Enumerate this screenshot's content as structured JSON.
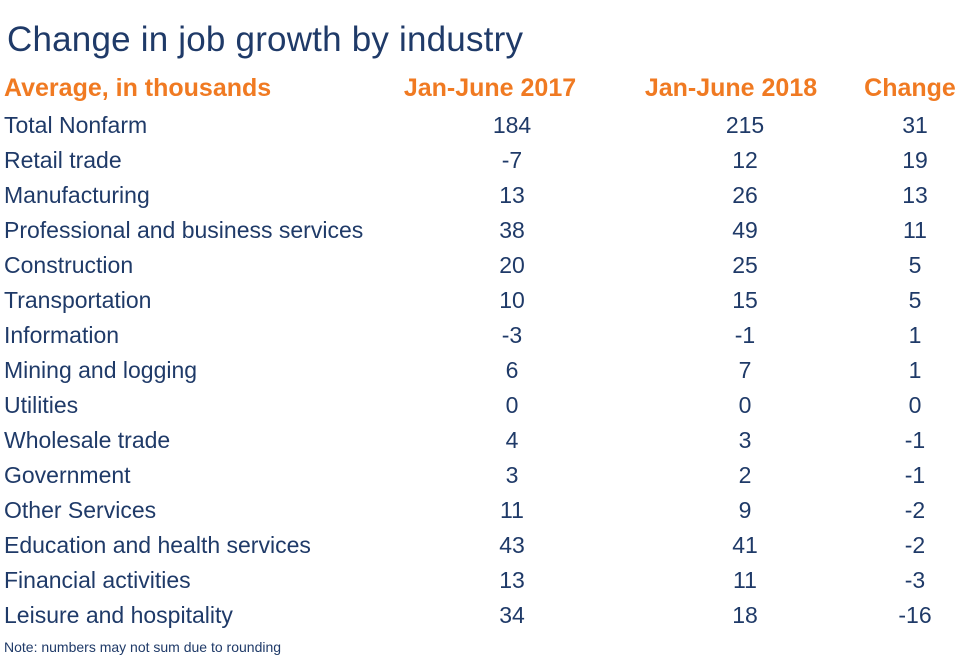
{
  "title": "Change in job growth by industry",
  "note": "Note: numbers may not sum due to rounding",
  "colors": {
    "title_text": "#1f3a68",
    "header_text": "#f07a22",
    "body_text": "#1f3a68",
    "background": "#ffffff"
  },
  "chart_data": {
    "type": "table",
    "title": "Change in job growth by industry",
    "columns": [
      "Average, in thousands",
      "Jan-June 2017",
      "Jan-June 2018",
      "Change"
    ],
    "rows": [
      {
        "label": "Total Nonfarm",
        "y2017": "184",
        "y2018": "215",
        "change": "31"
      },
      {
        "label": "Retail trade",
        "y2017": "-7",
        "y2018": "12",
        "change": "19"
      },
      {
        "label": "Manufacturing",
        "y2017": "13",
        "y2018": "26",
        "change": "13"
      },
      {
        "label": "Professional and business services",
        "y2017": "38",
        "y2018": "49",
        "change": "11"
      },
      {
        "label": "Construction",
        "y2017": "20",
        "y2018": "25",
        "change": "5"
      },
      {
        "label": "Transportation",
        "y2017": "10",
        "y2018": "15",
        "change": "5"
      },
      {
        "label": "Information",
        "y2017": "-3",
        "y2018": "-1",
        "change": "1"
      },
      {
        "label": "Mining and logging",
        "y2017": "6",
        "y2018": "7",
        "change": "1"
      },
      {
        "label": "Utilities",
        "y2017": "0",
        "y2018": "0",
        "change": "0"
      },
      {
        "label": "Wholesale trade",
        "y2017": "4",
        "y2018": "3",
        "change": "-1"
      },
      {
        "label": "Government",
        "y2017": "3",
        "y2018": "2",
        "change": "-1"
      },
      {
        "label": "Other Services",
        "y2017": "11",
        "y2018": "9",
        "change": "-2"
      },
      {
        "label": "Education and health services",
        "y2017": "43",
        "y2018": "41",
        "change": "-2"
      },
      {
        "label": "Financial activities",
        "y2017": "13",
        "y2018": "11",
        "change": "-3"
      },
      {
        "label": "Leisure and hospitality",
        "y2017": "34",
        "y2018": "18",
        "change": "-16"
      }
    ],
    "note": "Note: numbers may not sum due to rounding"
  }
}
